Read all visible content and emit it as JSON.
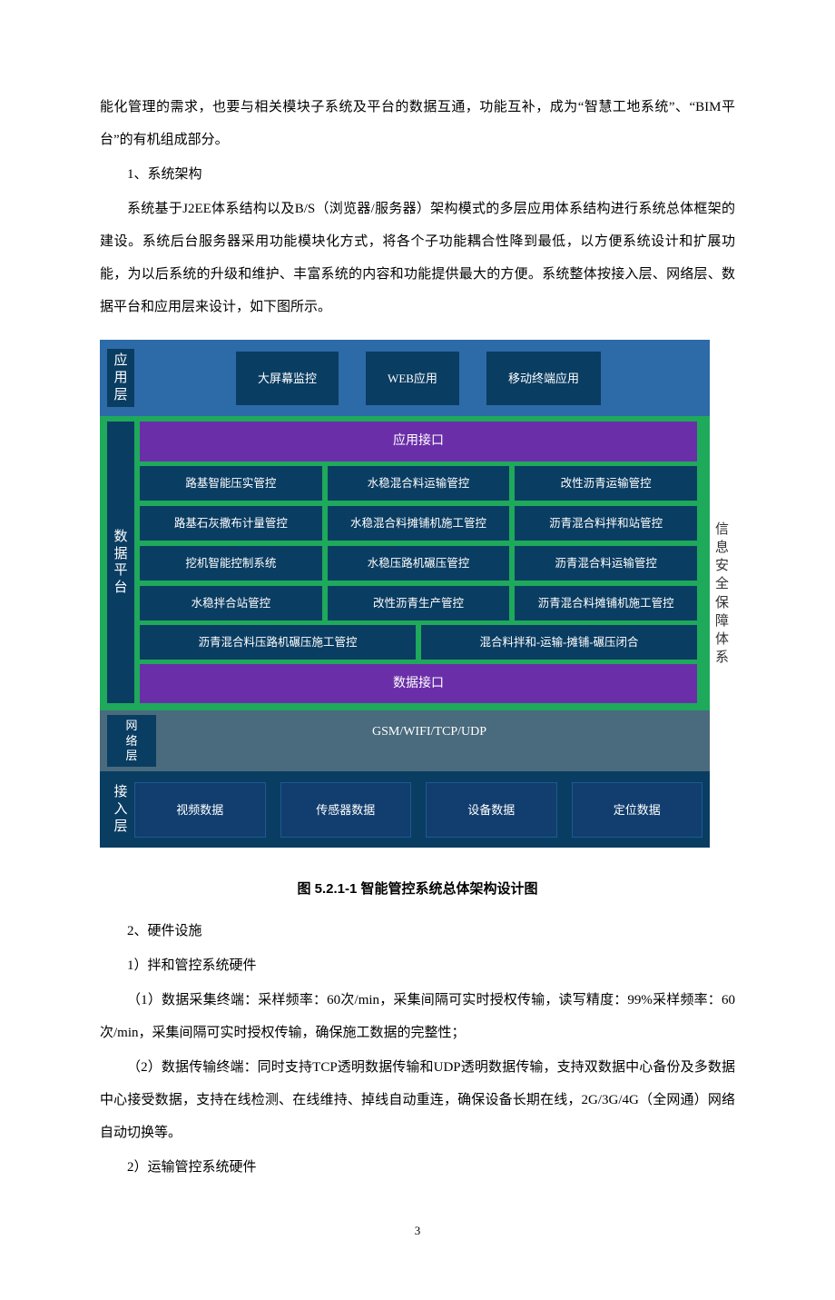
{
  "text": {
    "p1": "能化管理的需求，也要与相关模块子系统及平台的数据互通，功能互补，成为“智慧工地系统”、“BIM平台”的有机组成部分。",
    "h1": "1、系统架构",
    "p2": "系统基于J2EE体系结构以及B/S（浏览器/服务器）架构模式的多层应用体系结构进行系统总体框架的建设。系统后台服务器采用功能模块化方式，将各个子功能耦合性降到最低，以方便系统设计和扩展功能，为以后系统的升级和维护、丰富系统的内容和功能提供最大的方便。系统整体按接入层、网络层、数据平台和应用层来设计，如下图所示。",
    "caption": "图 5.2.1-1  智能管控系统总体架构设计图",
    "h2": "2、硬件设施",
    "h3": "1）拌和管控系统硬件",
    "p3": "（1）数据采集终端：采样频率：60次/min，采集间隔可实时授权传输，读写精度：99%采样频率：60次/min，采集间隔可实时授权传输，确保施工数据的完整性；",
    "p4": "（2）数据传输终端：同时支持TCP透明数据传输和UDP透明数据传输，支持双数据中心备份及多数据中心接受数据，支持在线检测、在线维持、掉线自动重连，确保设备长期在线，2G/3G/4G（全网通）网络自动切换等。",
    "h4": "2）运输管控系统硬件",
    "pagenum": "3"
  },
  "diagram": {
    "rightLabel": "信息安全保障体系",
    "app": {
      "label": "应用层",
      "items": [
        "大屏幕监控",
        "WEB应用",
        "移动终端应用"
      ],
      "bg": "#2d6aa8",
      "boxBg": "#0a3d62"
    },
    "platform": {
      "label": "数据平台",
      "topBar": "应用接口",
      "bottomBar": "数据接口",
      "bg": "#1ea95b",
      "barBg": "#6a2fa8",
      "cells3": [
        [
          "路基智能压实管控",
          "水稳混合料运输管控",
          "改性沥青运输管控"
        ],
        [
          "路基石灰撒布计量管控",
          "水稳混合料摊铺机施工管控",
          "沥青混合料拌和站管控"
        ],
        [
          "挖机智能控制系统",
          "水稳压路机碾压管控",
          "沥青混合料运输管控"
        ],
        [
          "水稳拌合站管控",
          "改性沥青生产管控",
          "沥青混合料摊铺机施工管控"
        ]
      ],
      "cells2": [
        "沥青混合料压路机碾压施工管控",
        "混合料拌和-运输-摊铺-碾压闭合"
      ]
    },
    "network": {
      "label": "网络层",
      "text": "GSM/WIFI/TCP/UDP",
      "bg": "#4a6a7d"
    },
    "access": {
      "label": "接入层",
      "items": [
        "视频数据",
        "传感器数据",
        "设备数据",
        "定位数据"
      ],
      "bg": "#0a3d62"
    }
  }
}
